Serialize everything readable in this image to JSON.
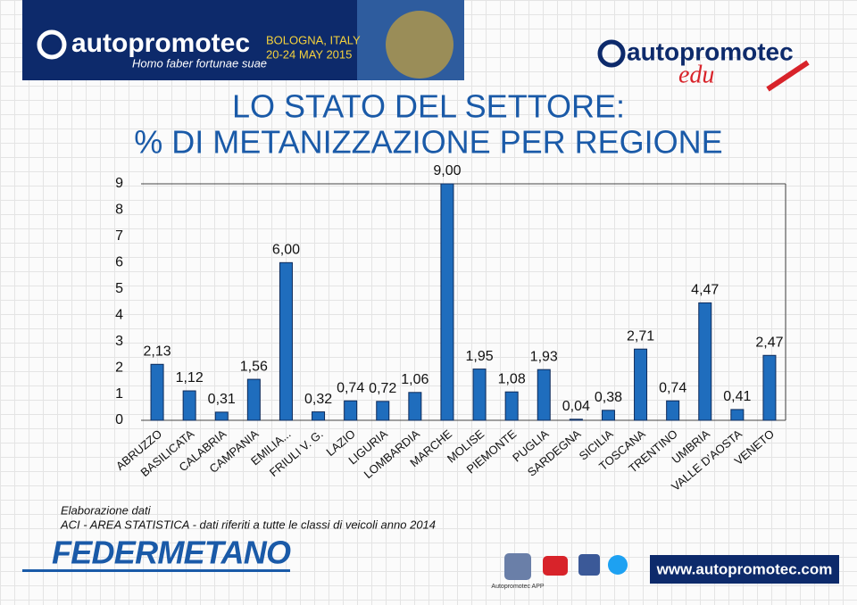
{
  "header": {
    "brand": "autopromotec",
    "motto": "Homo faber fortunae suae",
    "location": "BOLOGNA, ITALY",
    "dates": "20-24 MAY 2015",
    "edu_brand": "autopromotec",
    "edu_tag": "edu"
  },
  "chart_data": {
    "type": "bar",
    "title": "LO STATO DEL SETTORE:",
    "subtitle": "% DI METANIZZAZIONE PER REGIONE",
    "categories": [
      "ABRUZZO",
      "BASILICATA",
      "CALABRIA",
      "CAMPANIA",
      "EMILIA...",
      "FRIULI V. G.",
      "LAZIO",
      "LIGURIA",
      "LOMBARDIA",
      "MARCHE",
      "MOLISE",
      "PIEMONTE",
      "PUGLIA",
      "SARDEGNA",
      "SICILIA",
      "TOSCANA",
      "TRENTINO",
      "UMBRIA",
      "VALLE D'AOSTA",
      "VENETO"
    ],
    "values": [
      2.13,
      1.12,
      0.31,
      1.56,
      6.0,
      0.32,
      0.74,
      0.72,
      1.06,
      9.0,
      1.95,
      1.08,
      1.93,
      0.04,
      0.38,
      2.71,
      0.74,
      4.47,
      0.41,
      2.47
    ],
    "value_labels": [
      "2,13",
      "1,12",
      "0,31",
      "1,56",
      "6,00",
      "0,32",
      "0,74",
      "0,72",
      "1,06",
      "9,00",
      "1,95",
      "1,08",
      "1,93",
      "0,04",
      "0,38",
      "2,71",
      "0,74",
      "4,47",
      "0,41",
      "2,47"
    ],
    "color": "#1f6dbd",
    "ylim": [
      0,
      9
    ],
    "yticks": [
      0,
      1,
      2,
      3,
      4,
      5,
      6,
      7,
      8,
      9
    ],
    "grid": false
  },
  "source": {
    "line1": "Elaborazione dati",
    "line2": "ACI - AREA STATISTICA - dati riferiti a tutte le classi di veicoli anno 2014"
  },
  "footer": {
    "logo": "FEDERMETANO",
    "app": "Autopromotec APP",
    "website": "www.autopromotec.com"
  }
}
